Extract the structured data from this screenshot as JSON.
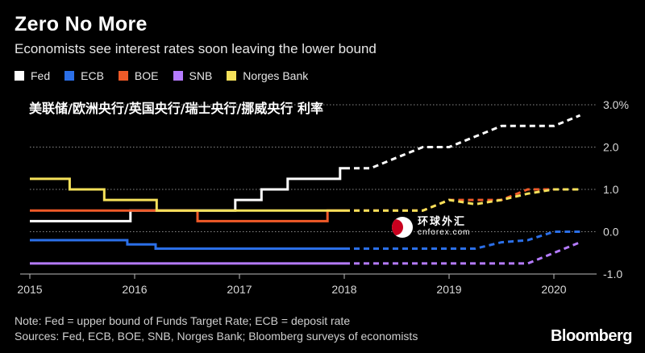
{
  "title": "Zero No More",
  "subtitle": "Economists see interest rates soon leaving the lower bound",
  "overlay_text": "美联储/欧洲央行/英国央行/瑞士央行/挪威央行 利率",
  "note": "Note: Fed = upper bound of Funds Target Rate; ECB = deposit rate",
  "sources": "Sources: Fed, ECB, BOE, SNB, Norges Bank; Bloomberg surveys of economists",
  "brand": "Bloomberg",
  "watermark": {
    "cn": "环球外汇",
    "en": "cnforex.com"
  },
  "chart_data": {
    "type": "line",
    "title": "Zero No More",
    "subtitle": "Economists see interest rates soon leaving the lower bound",
    "xlim": [
      2015.0,
      2020.42
    ],
    "ylim": [
      -1.0,
      3.0
    ],
    "x_ticks": [
      2015,
      2016,
      2017,
      2018,
      2019,
      2020
    ],
    "x_tick_labels": [
      "2015",
      "2016",
      "2017",
      "2018",
      "2019",
      "2020"
    ],
    "y_ticks": [
      3.0,
      2.0,
      1.0,
      0.0,
      -1.0
    ],
    "y_tick_labels": [
      "3.0%",
      "2.0",
      "1.0",
      "0.0",
      "-1.0"
    ],
    "y_axis_side": "right",
    "grid": "horizontal dotted",
    "legend_position": "top-left",
    "forecast_start": 2018.0,
    "forecast_style": "dashed",
    "series": [
      {
        "name": "Fed",
        "color": "#ffffff",
        "actual": [
          [
            2015.0,
            0.25
          ],
          [
            2015.96,
            0.25
          ],
          [
            2015.96,
            0.5
          ],
          [
            2016.96,
            0.5
          ],
          [
            2016.96,
            0.75
          ],
          [
            2017.21,
            0.75
          ],
          [
            2017.21,
            1.0
          ],
          [
            2017.46,
            1.0
          ],
          [
            2017.46,
            1.25
          ],
          [
            2017.96,
            1.25
          ],
          [
            2017.96,
            1.5
          ],
          [
            2018.0,
            1.5
          ]
        ],
        "forecast": [
          [
            2018.0,
            1.5
          ],
          [
            2018.25,
            1.5
          ],
          [
            2018.5,
            1.75
          ],
          [
            2018.75,
            2.0
          ],
          [
            2019.0,
            2.0
          ],
          [
            2019.25,
            2.25
          ],
          [
            2019.5,
            2.5
          ],
          [
            2019.75,
            2.5
          ],
          [
            2020.0,
            2.5
          ],
          [
            2020.25,
            2.75
          ]
        ]
      },
      {
        "name": "ECB",
        "color": "#2b6fe8",
        "actual": [
          [
            2015.0,
            -0.2
          ],
          [
            2015.93,
            -0.2
          ],
          [
            2015.93,
            -0.3
          ],
          [
            2016.2,
            -0.3
          ],
          [
            2016.2,
            -0.4
          ],
          [
            2018.0,
            -0.4
          ]
        ],
        "forecast": [
          [
            2018.0,
            -0.4
          ],
          [
            2019.25,
            -0.4
          ],
          [
            2019.5,
            -0.25
          ],
          [
            2019.75,
            -0.2
          ],
          [
            2020.0,
            0.0
          ],
          [
            2020.25,
            0.0
          ]
        ]
      },
      {
        "name": "BOE",
        "color": "#f05a28",
        "actual": [
          [
            2015.0,
            0.5
          ],
          [
            2016.6,
            0.5
          ],
          [
            2016.6,
            0.25
          ],
          [
            2017.84,
            0.25
          ],
          [
            2017.84,
            0.5
          ],
          [
            2018.0,
            0.5
          ]
        ],
        "forecast": [
          [
            2018.0,
            0.5
          ],
          [
            2018.75,
            0.5
          ],
          [
            2019.0,
            0.75
          ],
          [
            2019.25,
            0.75
          ],
          [
            2019.5,
            0.75
          ],
          [
            2019.75,
            1.0
          ],
          [
            2020.0,
            1.0
          ],
          [
            2020.25,
            1.0
          ]
        ]
      },
      {
        "name": "SNB",
        "color": "#b57bff",
        "actual": [
          [
            2015.0,
            -0.75
          ],
          [
            2018.0,
            -0.75
          ]
        ],
        "forecast": [
          [
            2018.0,
            -0.75
          ],
          [
            2019.75,
            -0.75
          ],
          [
            2020.0,
            -0.5
          ],
          [
            2020.25,
            -0.25
          ]
        ]
      },
      {
        "name": "Norges Bank",
        "color": "#f5e15a",
        "actual": [
          [
            2015.0,
            1.25
          ],
          [
            2015.38,
            1.25
          ],
          [
            2015.38,
            1.0
          ],
          [
            2015.71,
            1.0
          ],
          [
            2015.71,
            0.75
          ],
          [
            2016.21,
            0.75
          ],
          [
            2016.21,
            0.5
          ],
          [
            2018.0,
            0.5
          ]
        ],
        "forecast": [
          [
            2018.0,
            0.5
          ],
          [
            2018.75,
            0.5
          ],
          [
            2019.0,
            0.75
          ],
          [
            2019.25,
            0.65
          ],
          [
            2019.5,
            0.75
          ],
          [
            2019.75,
            0.9
          ],
          [
            2020.0,
            1.0
          ],
          [
            2020.25,
            1.0
          ]
        ]
      }
    ]
  }
}
